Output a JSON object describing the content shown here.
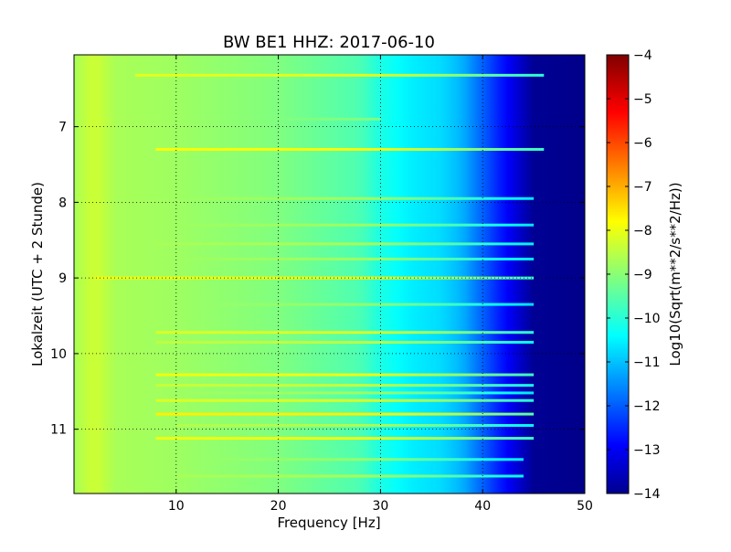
{
  "chart_data": {
    "type": "heatmap",
    "title": "BW BE1 HHZ: 2017-06-10",
    "xlabel": "Frequency [Hz]",
    "ylabel": "Lokalzeit (UTC + 2 Stunde)",
    "xlim": [
      0,
      50
    ],
    "ylim": [
      6.05,
      11.85
    ],
    "y_inverted": true,
    "x_ticks": [
      10,
      20,
      30,
      40,
      50
    ],
    "y_ticks": [
      7,
      8,
      9,
      10,
      11
    ],
    "grid": true,
    "colorbar": {
      "label": "Log10(Sqrt(m**2/s**2/Hz))",
      "range": [
        -14,
        -4
      ],
      "ticks": [
        -4,
        -5,
        -6,
        -7,
        -8,
        -9,
        -10,
        -11,
        -12,
        -13,
        -14
      ],
      "colormap": "jet"
    },
    "spectral_profile": {
      "frequency_hz": [
        0,
        2,
        4,
        10,
        20,
        28,
        30,
        33,
        36,
        38,
        40,
        42,
        45,
        50
      ],
      "log_amplitude": [
        -8.6,
        -8.2,
        -8.6,
        -8.7,
        -9.0,
        -9.5,
        -10.0,
        -10.4,
        -10.6,
        -11.0,
        -11.8,
        -12.6,
        -13.8,
        -13.9
      ]
    },
    "transient_rows": [
      {
        "time": 6.32,
        "fmin": 6,
        "fmax": 46,
        "level": -8.0
      },
      {
        "time": 6.9,
        "fmin": 2,
        "fmax": 30,
        "level": -9.0
      },
      {
        "time": 7.3,
        "fmin": 8,
        "fmax": 46,
        "level": -7.8
      },
      {
        "time": 7.95,
        "fmin": 8,
        "fmax": 45,
        "level": -8.7
      },
      {
        "time": 8.3,
        "fmin": 10,
        "fmax": 45,
        "level": -8.7
      },
      {
        "time": 8.55,
        "fmin": 8,
        "fmax": 45,
        "level": -8.6
      },
      {
        "time": 8.75,
        "fmin": 8,
        "fmax": 45,
        "level": -8.7
      },
      {
        "time": 9.0,
        "fmin": 2,
        "fmax": 45,
        "level": -7.9
      },
      {
        "time": 9.35,
        "fmin": 8,
        "fmax": 45,
        "level": -8.8
      },
      {
        "time": 9.72,
        "fmin": 8,
        "fmax": 45,
        "level": -8.1
      },
      {
        "time": 9.85,
        "fmin": 8,
        "fmax": 45,
        "level": -8.4
      },
      {
        "time": 10.28,
        "fmin": 8,
        "fmax": 45,
        "level": -7.9
      },
      {
        "time": 10.42,
        "fmin": 8,
        "fmax": 45,
        "level": -8.3
      },
      {
        "time": 10.52,
        "fmin": 10,
        "fmax": 45,
        "level": -8.7
      },
      {
        "time": 10.62,
        "fmin": 8,
        "fmax": 45,
        "level": -8.1
      },
      {
        "time": 10.8,
        "fmin": 8,
        "fmax": 45,
        "level": -7.6
      },
      {
        "time": 10.95,
        "fmin": 10,
        "fmax": 45,
        "level": -8.5
      },
      {
        "time": 11.12,
        "fmin": 8,
        "fmax": 45,
        "level": -7.9
      },
      {
        "time": 11.4,
        "fmin": 10,
        "fmax": 44,
        "level": -8.8
      },
      {
        "time": 11.62,
        "fmin": 10,
        "fmax": 44,
        "level": -8.6
      }
    ]
  }
}
